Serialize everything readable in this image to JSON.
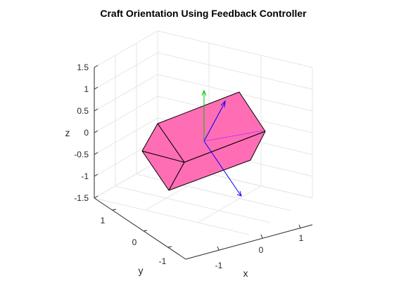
{
  "chart_data": {
    "type": "3d-scene",
    "title": "Craft Orientation Using Feedback Controller",
    "xlabel": "x",
    "ylabel": "y",
    "zlabel": "z",
    "xlim": [
      -1.5,
      1.5
    ],
    "ylim": [
      -1.5,
      1.5
    ],
    "zlim": [
      -1.5,
      1.5
    ],
    "xticks": [
      -1,
      0,
      1
    ],
    "yticks": [
      -1,
      0,
      1
    ],
    "zticks": [
      -1.5,
      -1,
      -0.5,
      0,
      0.5,
      1,
      1.5
    ],
    "xtick_labels": [
      "-1",
      "0",
      "1"
    ],
    "ytick_labels": [
      "-1",
      "0",
      "1"
    ],
    "ztick_labels": [
      "-1.5",
      "-1",
      "-0.5",
      "0",
      "0.5",
      "1",
      "1.5"
    ],
    "grid": true,
    "colors": {
      "box_fill": "#ff6eb4",
      "box_edge": "#000000",
      "grid": "#e5e5e5",
      "axis": "#262626",
      "arrow_green": "#00c000",
      "arrow_blue": "#0000ff",
      "arrow_magenta": "#cc33ff"
    }
  }
}
